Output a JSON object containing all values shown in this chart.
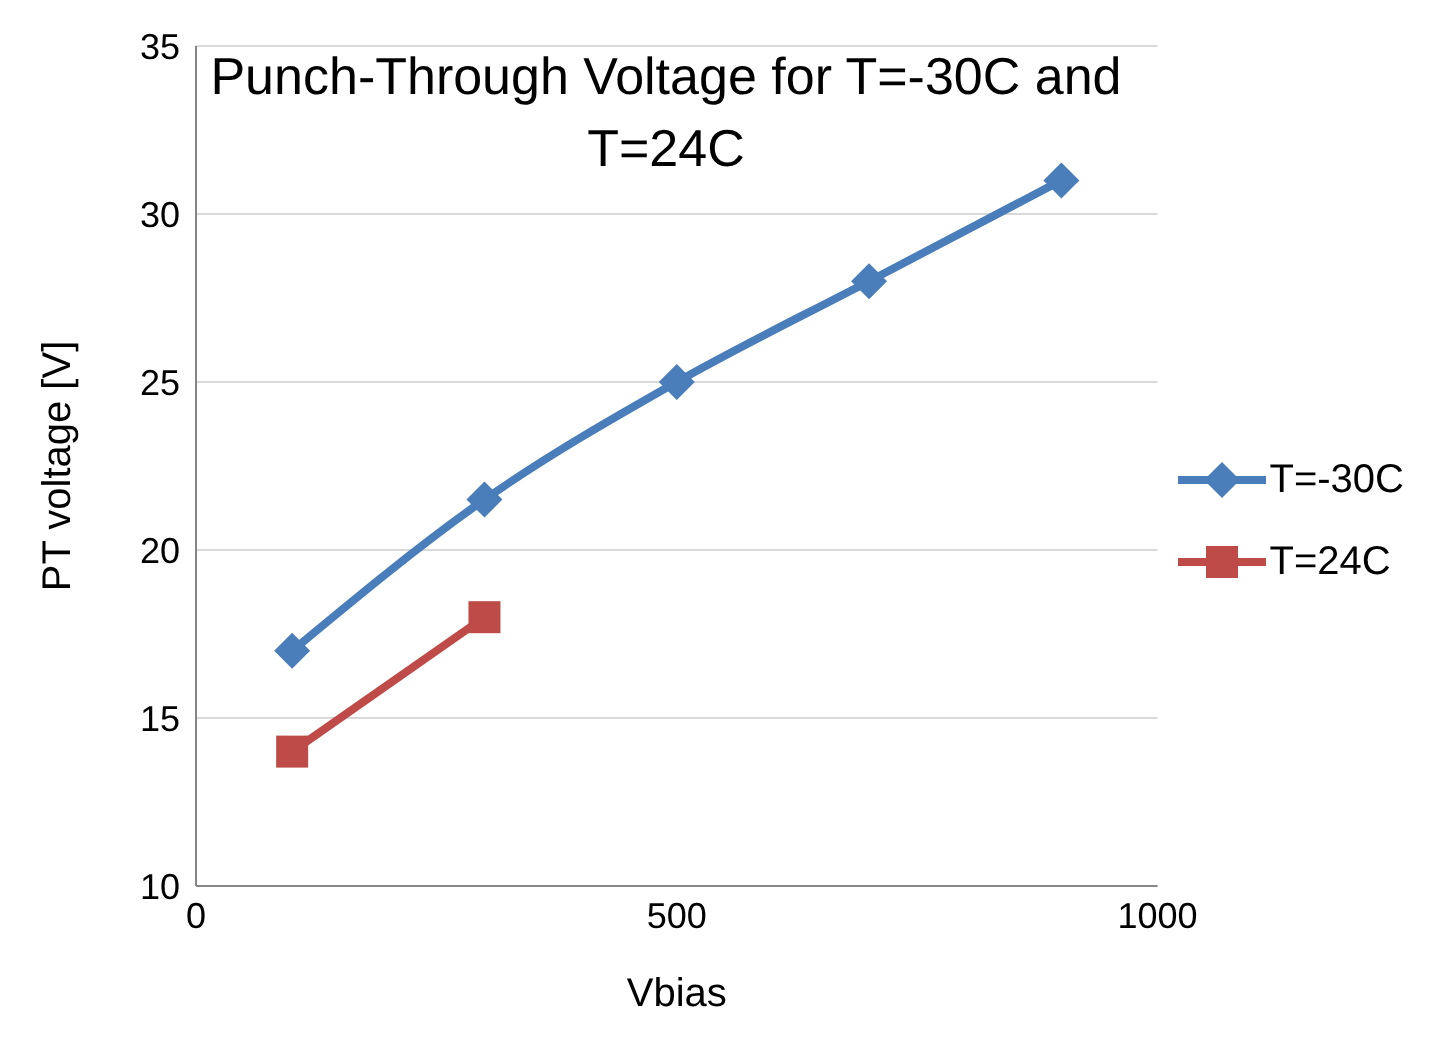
{
  "chart_data": {
    "type": "line",
    "title": "Punch-Through Voltage for T=-30C and T=24C",
    "xlabel": "Vbias",
    "ylabel": "PT voltage [V]",
    "x": [
      100,
      300,
      500,
      700,
      900
    ],
    "series": [
      {
        "name": "T=-30C",
        "color": "#4a7ebb",
        "marker": "diamond",
        "values": [
          17,
          21.5,
          25,
          28,
          31
        ]
      },
      {
        "name": "T=24C",
        "color": "#be4b48",
        "marker": "square",
        "values": [
          14,
          18,
          null,
          null,
          null
        ]
      }
    ],
    "xlim": [
      0,
      1000
    ],
    "xticks": [
      0,
      500,
      1000
    ],
    "ylim": [
      10,
      35
    ],
    "yticks": [
      10,
      15,
      20,
      25,
      30,
      35
    ],
    "grid": "y",
    "legend": "right",
    "line_style": "solid"
  }
}
